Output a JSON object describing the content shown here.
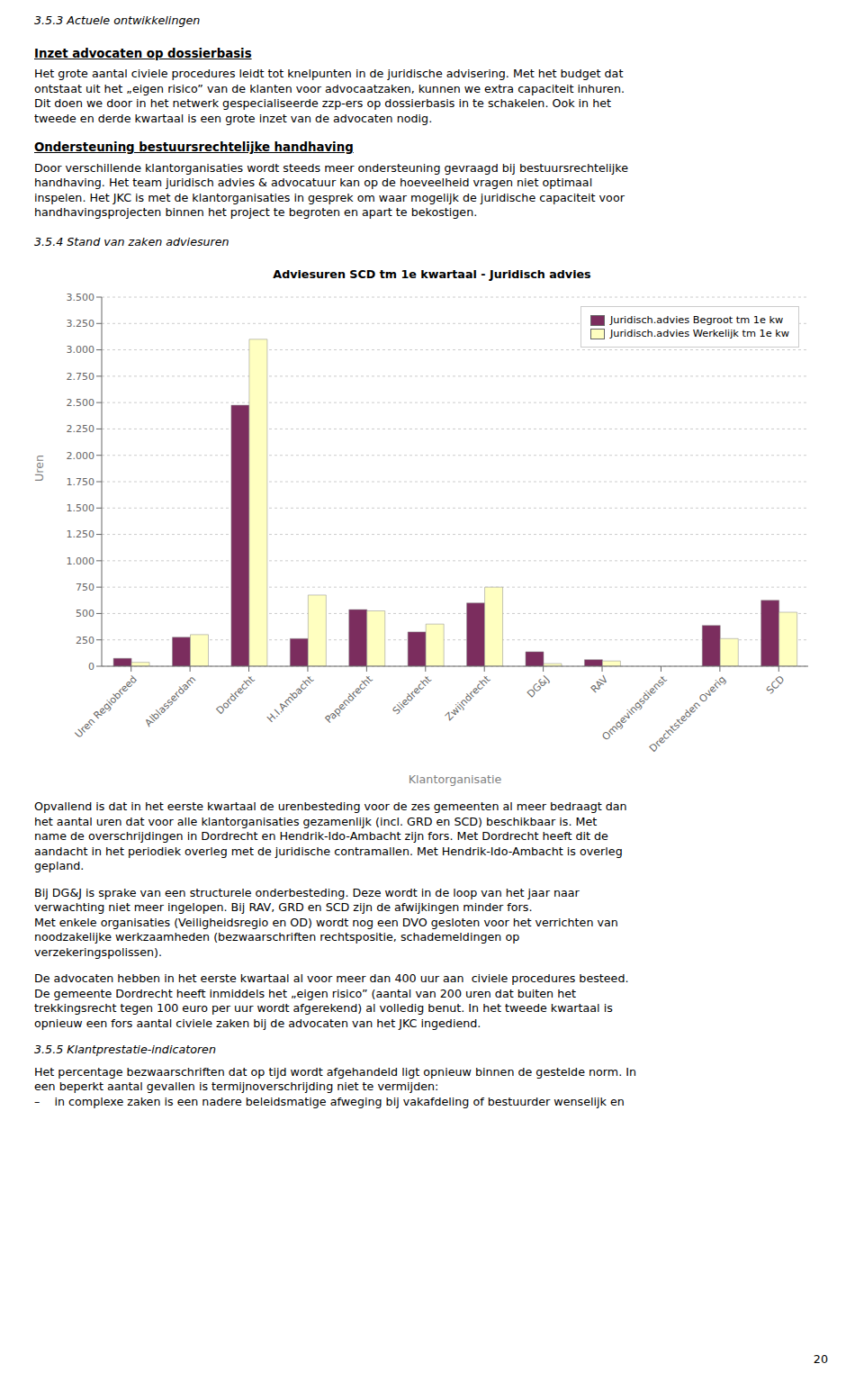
{
  "chart_data": {
    "type": "bar",
    "title": "Adviesuren SCD tm 1e kwartaal - Juridisch advies",
    "xlabel": "Klantorganisatie",
    "ylabel": "Uren",
    "categories": [
      "Uren Regiobreed",
      "Alblasserdam",
      "Dordrecht",
      "H.I.Ambacht",
      "Papendrecht",
      "Sliedrecht",
      "Zwijndrecht",
      "DG&J",
      "RAV",
      "Omgevingsdienst",
      "Drechtsteden Overig",
      "SCD"
    ],
    "series": [
      {
        "name": "Juridisch.advies Begroot tm 1e kw",
        "color": "#7B2D5E",
        "values": [
          75,
          275,
          2475,
          262,
          537,
          325,
          600,
          137,
          62,
          0,
          387,
          625
        ]
      },
      {
        "name": "Juridisch.advies Werkelijk tm 1e kw",
        "color": "#FFFFC0",
        "values": [
          37,
          300,
          3100,
          675,
          525,
          400,
          750,
          25,
          50,
          0,
          262,
          512
        ]
      }
    ],
    "ylim": [
      0,
      3500
    ],
    "yticks": [
      0,
      250,
      500,
      750,
      {
        "value": 1000,
        "label": "1.000"
      },
      {
        "value": 1250,
        "label": "1.250"
      },
      {
        "value": 1500,
        "label": "1.500"
      },
      {
        "value": 1750,
        "label": "1.750"
      },
      {
        "value": 2000,
        "label": "2.000"
      },
      {
        "value": 2250,
        "label": "2.250"
      },
      {
        "value": 2500,
        "label": "2.500"
      },
      {
        "value": 2750,
        "label": "2.750"
      },
      {
        "value": 3000,
        "label": "3.000"
      },
      {
        "value": 3250,
        "label": "3.250"
      },
      {
        "value": 3500,
        "label": "3.500"
      }
    ],
    "grid": true,
    "legend": "upper right",
    "annotations": [
      [
        "3.5.3 Actuele ontwikkelingen"
      ],
      [
        "Inzet advocaten op dossierbasis"
      ],
      [
        "Het grote aantal civiele procedures leidt tot knelpunten in de juridische advisering. Met het budget dat",
        "ontstaat uit het „eigen risico” van de klanten voor advocaatzaken, kunnen we extra capaciteit inhuren.",
        "Dit doen we door in het netwerk gespecialiseerde zzp-ers op dossierbasis in te schakelen. Ook in het",
        "tweede en derde kwartaal is een grote inzet van de advocaten nodig."
      ],
      [
        "Ondersteuning bestuursrechtelijke handhaving"
      ],
      [
        "Door verschillende klantorganisaties wordt steeds meer ondersteuning gevraagd bij bestuursrechtelijke",
        "handhaving. Het team juridisch advies & advocatuur kan op de hoeveelheid vragen niet optimaal",
        "inspelen. Het JKC is met de klantorganisaties in gesprek om waar mogelijk de juridische capaciteit voor",
        "handhavingsprojecten binnen het project te begroten en apart te bekostigen."
      ],
      [
        "3.5.4 Stand van zaken adviesuren"
      ],
      [
        "Opvallend is dat in het eerste kwartaal de urenbesteding voor de zes gemeenten al meer bedraagt dan",
        "het aantal uren dat voor alle klantorganisaties gezamenlijk (incl. GRD en SCD) beschikbaar is. Met",
        "name de overschrijdingen in Dordrecht en Hendrik-Ido-Ambacht zijn fors. Met Dordrecht heeft dit de",
        "aandacht in het periodiek overleg met de juridische contramallen. Met Hendrik-Ido-Ambacht is overleg",
        "gepland."
      ],
      [
        "Bij DG&J is sprake van een structurele onderbesteding. Deze wordt in de loop van het jaar naar",
        "verwachting niet meer ingelopen. Bij RAV, GRD en SCD zijn de afwijkingen minder fors.",
        "Met enkele organisaties (Veiligheidsregio en OD) wordt nog een DVO gesloten voor het verrichten van",
        "noodzakelijke werkzaamheden (bezwaarschriften rechtspositie, schademeldingen op",
        "verzekeringspolissen)."
      ],
      [
        "De advocaten hebben in het eerste kwartaal al voor meer dan 400 uur aan  civiele procedures besteed.",
        "De gemeente Dordrecht heeft inmiddels het „eigen risico” (aantal van 200 uren dat buiten het",
        "trekkingsrecht tegen 100 euro per uur wordt afgerekend) al volledig benut. In het tweede kwartaal is",
        "opnieuw een fors aantal civiele zaken bij de advocaten van het JKC ingediend."
      ],
      [
        "3.5.5 Klantprestatie-indicatoren"
      ],
      [
        "Het percentage bezwaarschriften dat op tijd wordt afgehandeld ligt opnieuw binnen de gestelde norm. In",
        "een beperkt aantal gevallen is termijnoverschrijding niet te vermijden:",
        "–    in complexe zaken is een nadere beleidsmatige afweging bij vakafdeling of bestuurder wenselijk en"
      ],
      [
        "20"
      ]
    ]
  }
}
